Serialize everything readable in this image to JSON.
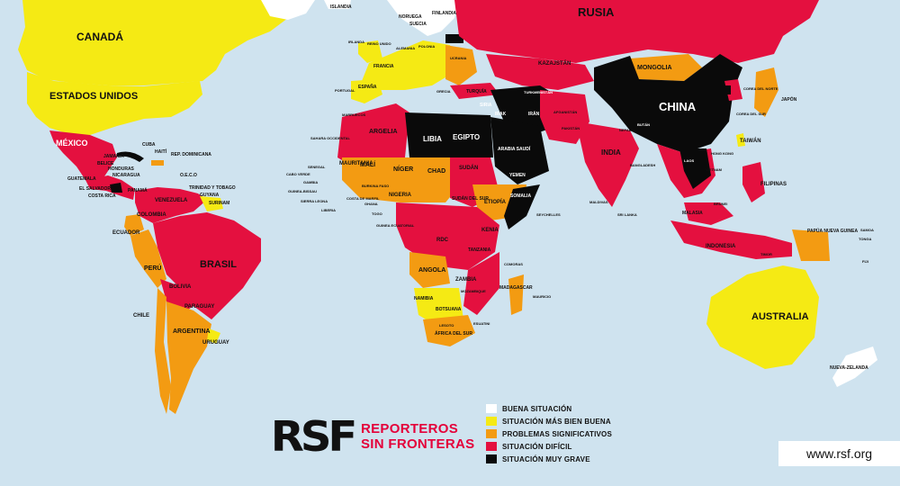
{
  "colors": {
    "ocean": "#cfe3ef",
    "buena": "#ffffff",
    "mas_bien_buena": "#f5ea14",
    "problemas": "#f39b12",
    "dificil": "#e4103f",
    "muy_grave": "#0a0a0a"
  },
  "legend": [
    {
      "label": "BUENA SITUACIÓN",
      "color": "#ffffff"
    },
    {
      "label": "SITUACIÓN MÁS BIEN BUENA",
      "color": "#f5ea14"
    },
    {
      "label": "PROBLEMAS SIGNIFICATIVOS",
      "color": "#f39b12"
    },
    {
      "label": "SITUACIÓN DIFÍCIL",
      "color": "#e4103f"
    },
    {
      "label": "SITUACIÓN MUY GRAVE",
      "color": "#0a0a0a"
    }
  ],
  "logo": {
    "mark": "RSF",
    "line1": "REPORTEROS",
    "line2": "SIN FRONTERAS"
  },
  "website": "www.rsf.org",
  "labels": {
    "canada": "CANADÁ",
    "estados_unidos": "ESTADOS UNIDOS",
    "mexico": "MÉXICO",
    "cuba": "CUBA",
    "haiti": "HAITÍ",
    "rep_dominicana": "REP. DOMINICANA",
    "jamaica": "JAMAICA",
    "belice": "BELICE",
    "honduras": "HONDURAS",
    "guatemala": "GUATEMALA",
    "nicaragua": "NICARAGUA",
    "el_salvador": "EL SALVADOR",
    "costa_rica": "COSTA RICA",
    "panama": "PANAMÁ",
    "oeco": "O.E.C.O",
    "trinidad": "TRINIDAD Y TOBAGO",
    "guyana": "GUYANA",
    "surinam": "SURINAM",
    "venezuela": "VENEZUELA",
    "colombia": "COLOMBIA",
    "ecuador": "ECUADOR",
    "peru": "PERÚ",
    "brasil": "BRASIL",
    "bolivia": "BOLIVIA",
    "paraguay": "PARAGUAY",
    "chile": "CHILE",
    "argentina": "ARGENTINA",
    "uruguay": "URUGUAY",
    "islandia": "ISLANDIA",
    "noruega": "NORUEGA",
    "finlandia": "FINLANDIA",
    "suecia": "SUECIA",
    "irlanda": "IRLANDA",
    "reino_unido": "REINO UNIDO",
    "alemania": "ALEMANIA",
    "polonia": "POLONIA",
    "ucrania": "UCRANIA",
    "francia": "FRANCIA",
    "espana": "ESPAÑA",
    "portugal": "PORTUGAL",
    "grecia": "GRECIA",
    "italia": "ITALIA",
    "rusia": "RUSIA",
    "kazajstan": "KAZAJSTÁN",
    "mongolia": "MONGOLIA",
    "china": "CHINA",
    "corea_norte": "COREA DEL NORTE",
    "corea_sur": "COREA DEL SUR",
    "japon": "JAPÓN",
    "taiwan": "TAIWÁN",
    "turquia": "TURQUÍA",
    "siria": "SIRIA",
    "irak": "IRAK",
    "iran": "IRÁN",
    "turkmenistan": "TURKMENISTÁN",
    "afganistan": "AFGANISTÁN",
    "pakistan": "PAKISTÁN",
    "india": "INDIA",
    "nepal": "NEPAL",
    "butan": "BUTÁN",
    "bangladesh": "BANGLADESH",
    "laos": "LAOS",
    "vietnam": "VIETNAM",
    "filipinas": "FILIPINAS",
    "malasia": "MALASIA",
    "brunei": "BRUNEI",
    "indonesia": "INDONESIA",
    "timor": "TIMOR",
    "maldivas": "MALDIVAS",
    "sri_lanka": "SRI LANKA",
    "hong_kong": "HONG KONG",
    "papua": "PAPÚA NUEVA GUINEA",
    "samoa": "SAMOA",
    "tonga": "TONGA",
    "fiji": "FIJI",
    "australia": "AUSTRALIA",
    "nueva_zelanda": "NUEVA-ZELANDA",
    "marruecos": "MARRUECOS",
    "sahara": "SAHARA OCCIDENTAL",
    "argelia": "ARGELIA",
    "libia": "LIBIA",
    "egipto": "EGIPTO",
    "arabia": "ARABIA SAUDÍ",
    "yemen": "YEMEN",
    "cabo_verde": "CABO VERDE",
    "senegal": "SENEGAL",
    "gambia": "GAMBIA",
    "guinea_bissau": "GUINEA-BISSAU",
    "sierra_leona": "SIERRA LEONA",
    "liberia": "LIBERIA",
    "mauritania": "MAURITANIA",
    "mali": "MALÍ",
    "niger": "NÍGER",
    "chad": "CHAD",
    "sudan": "SUDÁN",
    "sudan_sur": "SUDÁN DEL SUR",
    "etiopia": "ETIOPÍA",
    "somalia": "SOMALIA",
    "kenia": "KENIA",
    "nigeria": "NIGERIA",
    "burkina": "BURKINA FASO",
    "costa_marfil": "COSTA DE MARFIL",
    "ghana": "GHANA",
    "togo": "TOGO",
    "guinea_ecuatorial": "GUINEA ECUATORIAL",
    "rdc": "RDC",
    "tanzania": "TANZANIA",
    "angola": "ANGOLA",
    "zambia": "ZAMBIA",
    "mozambique": "MOZAMBIQUE",
    "namibia": "NAMIBIA",
    "botsuana": "BOTSUANA",
    "africa_sur": "ÁFRICA DEL SUR",
    "lesoto": "LESOTO",
    "esuatini": "ESUATINI",
    "madagascar": "MADAGASCAR",
    "comoras": "COMORAS",
    "mauricio": "MAURICIO",
    "seychelles": "SEYCHELLES"
  }
}
